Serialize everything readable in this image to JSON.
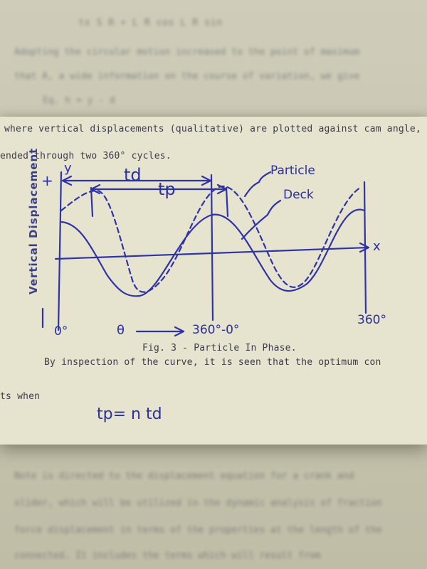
{
  "background_text": {
    "line1": "tx  S  R + L  R cos    L  R sin",
    "line2": "Adopting the circular motion increased to the point of maximum",
    "line3": "that A, a wide information on the course of variation, we give",
    "line4": "Eq.  h = y - d",
    "line5": "Note is directed to the displacement equation for a crank and",
    "line6": "slider, which will be utilized in the dynamic analysis of fraction",
    "line7": "force displacement in terms of the properties at the length of the",
    "line8": "connected. It includes the terms which will result from"
  },
  "document": {
    "intro_line1": "where vertical displacements (qualitative) are plotted against cam angle,",
    "intro_line2": "ended through two 360° cycles.",
    "caption": "Fig. 3 - Particle In Phase.",
    "after_caption": "By inspection of the curve, it is seen that the optimum con",
    "when_line": "ts when",
    "formula": "tp= n td"
  },
  "sketch": {
    "y_axis_label": "Vertical Displacement",
    "y_letter": "y",
    "x_letter": "x",
    "plus_sign": "+",
    "minus_sign": "-",
    "td_label": "td",
    "tp_label": "tp",
    "particle_label": "Particle",
    "deck_label": "Deck",
    "theta_label": "θ",
    "tick_0": "0°",
    "tick_mid": "360°-0°",
    "tick_end": "360°",
    "colors": {
      "ink": "#2f33a8",
      "type": "#3d3b4a",
      "paper": "#e6e3ce"
    }
  }
}
